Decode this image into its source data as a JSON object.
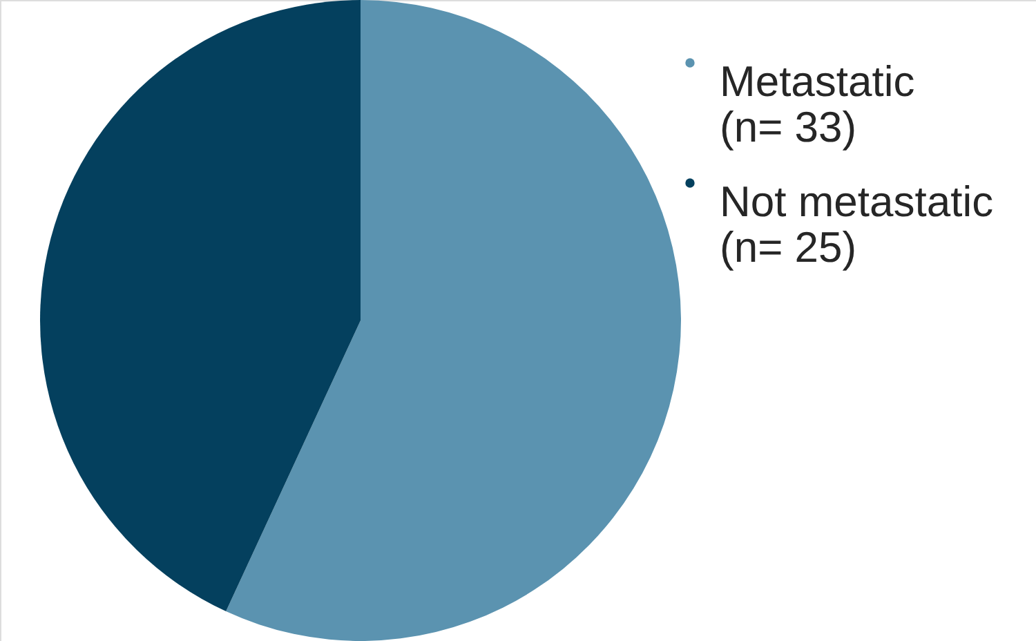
{
  "chart_data": {
    "type": "pie",
    "categories": [
      "Metastatic\n(n= 33)",
      "Not metastatic\n(n= 25)"
    ],
    "values": [
      33,
      25
    ],
    "colors": [
      "#5b93b0",
      "#04405e"
    ],
    "legend": "top right"
  }
}
